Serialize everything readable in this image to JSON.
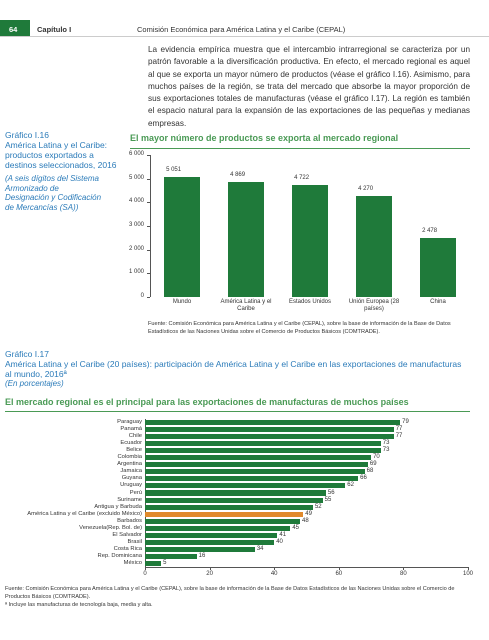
{
  "header": {
    "page": "64",
    "chapter": "Capítulo I",
    "publisher": "Comisión Económica para América Latina y el Caribe (CEPAL)"
  },
  "body_text": "La evidencia empírica muestra que el intercambio intrarregional se caracteriza por un patrón favorable a la diversificación productiva. En efecto, el mercado regional es aquel al que se exporta un mayor número de productos (véase el gráfico I.16). Asimismo, para muchos países de la región, se trata del mercado que absorbe la mayor proporción de sus exportaciones totales de manufacturas (véase el gráfico I.17). La región es también el espacio natural para la expansión de las exportaciones de las pequeñas y medianas empresas.",
  "chart_data": [
    {
      "type": "bar",
      "orientation": "vertical",
      "figure_label": "Gráfico I.16",
      "caption": "América Latina y el Caribe: productos exportados a destinos seleccionados, 2016",
      "note": "(A seis dígitos del Sistema Armonizado de Designación y Codificación de Mercancías (SA))",
      "title": "El mayor número de productos se exporta al mercado regional",
      "categories": [
        "Mundo",
        "América Latina y el Caribe",
        "Estados Unidos",
        "Unión Europea (28 países)",
        "China"
      ],
      "values": [
        5051,
        4869,
        4722,
        4270,
        2478
      ],
      "value_labels": [
        "5 051",
        "4 869",
        "4 722",
        "4 270",
        "2 478"
      ],
      "color": "#1f7a3a",
      "ylim": [
        0,
        6000
      ],
      "yticks": [
        0,
        {
          "value": 1000,
          "label": "1 000"
        },
        {
          "value": 2000,
          "label": "2 000"
        },
        {
          "value": 3000,
          "label": "3 000"
        },
        {
          "value": 4000,
          "label": "4 000"
        },
        {
          "value": 5000,
          "label": "5 000"
        },
        {
          "value": 6000,
          "label": "6 000"
        }
      ],
      "source": "Fuente: Comisión Económica para América Latina y el Caribe (CEPAL), sobre la base de información de la Base de Datos Estadísticos de las Naciones Unidas sobre el Comercio de Productos Básicos (COMTRADE)."
    },
    {
      "type": "bar",
      "orientation": "horizontal",
      "figure_label": "Gráfico I.17",
      "caption": "América Latina y el Caribe (20 países): participación de América Latina y el Caribe en las exportaciones de manufacturas al mundo, 2016ª",
      "note": "(En porcentajes)",
      "title": "El mercado regional es el principal para las exportaciones de manufacturas de muchos países",
      "categories": [
        "Paraguay",
        "Panamá",
        "Chile",
        "Ecuador",
        "Belice",
        "Colombia",
        "Argentina",
        "Jamaica",
        "Guyana",
        "Uruguay",
        "Perú",
        "Suriname",
        "Antigua y Barbuda",
        "América Latina y el Caribe (excluido México)",
        "Barbados",
        "Venezuela(Rep. Bol. de)",
        "El Salvador",
        "Brasil",
        "Costa Rica",
        "Rep. Dominicana",
        "México"
      ],
      "values": [
        79,
        77,
        77,
        73,
        73,
        70,
        69,
        68,
        66,
        62,
        56,
        55,
        52,
        49,
        48,
        45,
        41,
        40,
        34,
        16,
        5
      ],
      "colors": [
        "#1f7a3a",
        "#1f7a3a",
        "#1f7a3a",
        "#1f7a3a",
        "#1f7a3a",
        "#1f7a3a",
        "#1f7a3a",
        "#1f7a3a",
        "#1f7a3a",
        "#1f7a3a",
        "#1f7a3a",
        "#1f7a3a",
        "#1f7a3a",
        "#e08a2c",
        "#1f7a3a",
        "#1f7a3a",
        "#1f7a3a",
        "#1f7a3a",
        "#1f7a3a",
        "#1f7a3a",
        "#1f7a3a"
      ],
      "xlim": [
        0,
        100
      ],
      "xticks": [
        0,
        20,
        40,
        60,
        80,
        100
      ],
      "source": "Fuente: Comisión Económica para América Latina y el Caribe (CEPAL), sobre la base de información de la Base de Datos Estadísticos de las Naciones Unidas sobre el Comercio de Productos Básicos (COMTRADE).",
      "footnote": "ª Incluye las manufacturas de tecnología baja, media y alta."
    }
  ]
}
